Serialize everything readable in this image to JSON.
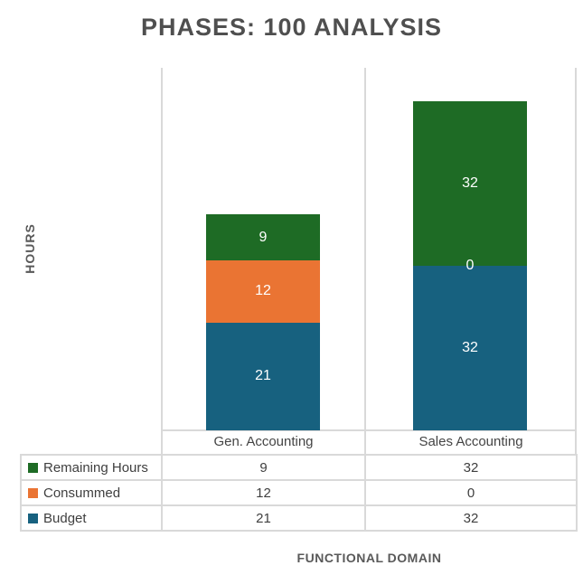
{
  "title": "PHASES: 100 ANALYSIS",
  "y_axis_label": "HOURS",
  "x_axis_label": "FUNCTIONAL DOMAIN",
  "colors": {
    "remaining_hours": "#1E6B25",
    "consummed": "#EA7433",
    "budget": "#17617F",
    "grid": "#D9D9D9",
    "title_text": "#4F4F4F",
    "axis_text": "#595959",
    "table_text": "#3F3F3F"
  },
  "chart_data": {
    "type": "bar",
    "stacked": true,
    "title": "PHASES: 100 ANALYSIS",
    "xlabel": "FUNCTIONAL DOMAIN",
    "ylabel": "HOURS",
    "categories": [
      "Gen. Accounting",
      "Sales Accounting"
    ],
    "series": [
      {
        "name": "Remaining Hours",
        "color": "#1E6B25",
        "values": [
          9,
          32
        ]
      },
      {
        "name": "Consummed",
        "color": "#EA7433",
        "values": [
          12,
          0
        ]
      },
      {
        "name": "Budget",
        "color": "#17617F",
        "values": [
          21,
          32
        ]
      }
    ],
    "stack_order_bottom_to_top": [
      "Budget",
      "Consummed",
      "Remaining Hours"
    ],
    "ylim": [
      0,
      70
    ],
    "y_ticks_visible": false,
    "grid": "vertical-only",
    "data_labels": true,
    "legend_position": "table-below"
  },
  "table": {
    "rows": [
      {
        "label": "Remaining Hours",
        "values": [
          "9",
          "32"
        ]
      },
      {
        "label": "Consummed",
        "values": [
          "12",
          "0"
        ]
      },
      {
        "label": "Budget",
        "values": [
          "21",
          "32"
        ]
      }
    ]
  }
}
